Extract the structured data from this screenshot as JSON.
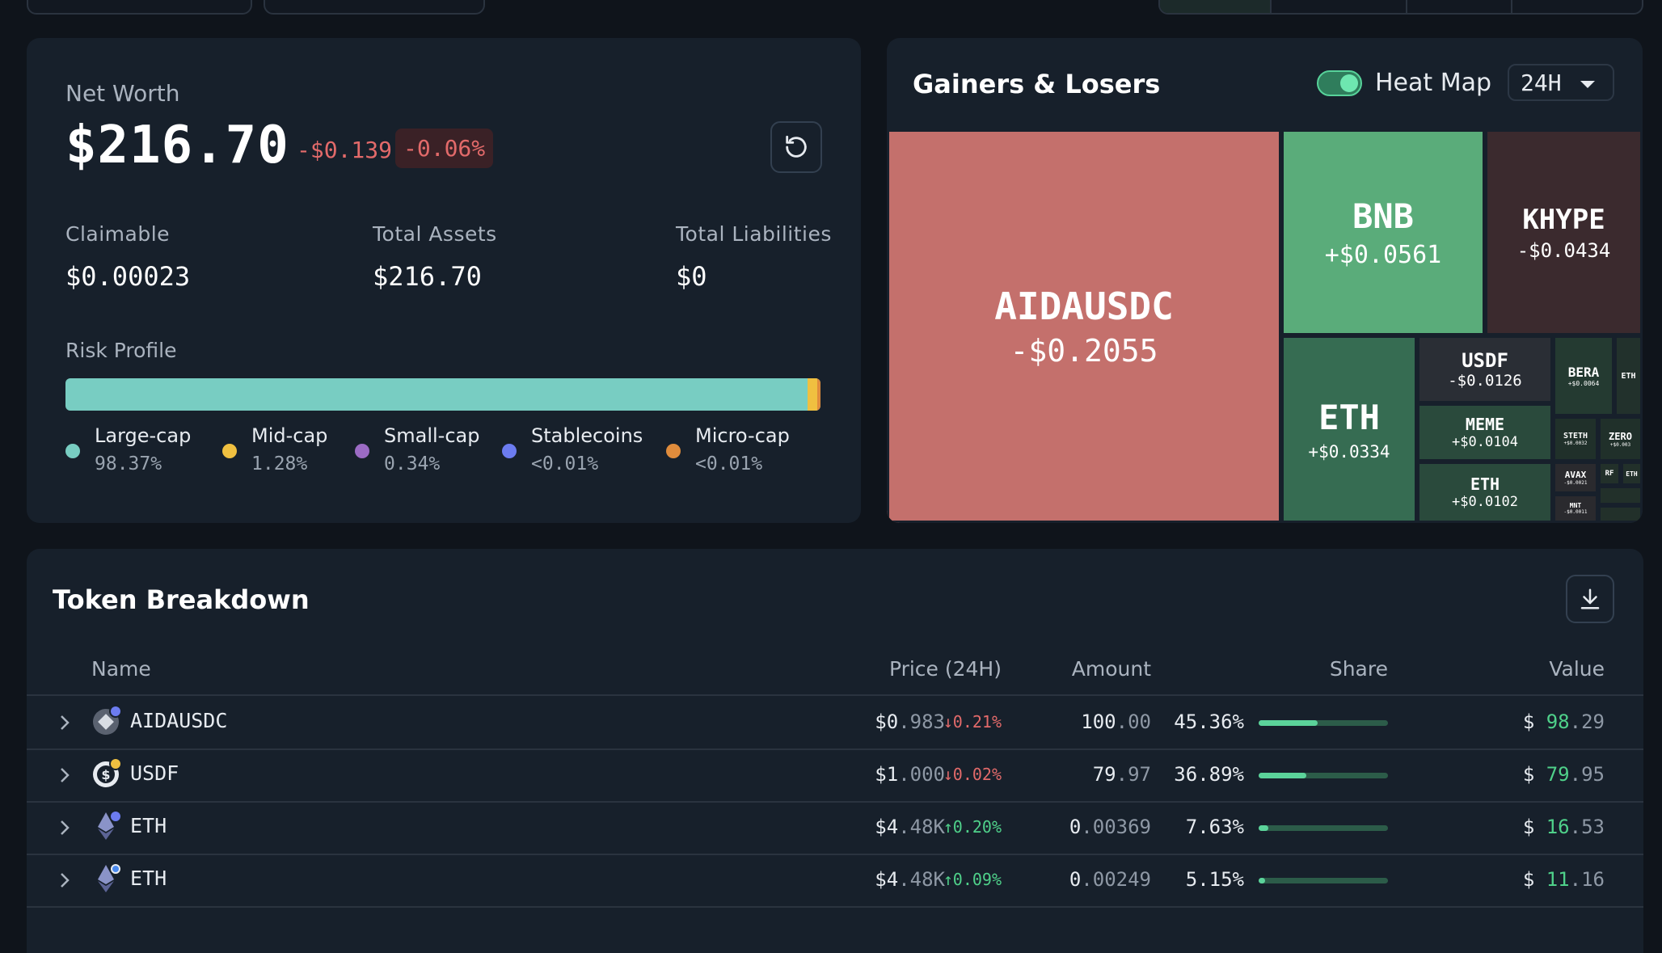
{
  "net_worth": {
    "label": "Net Worth",
    "value": "$216.70",
    "change": "-$0.139",
    "change_pct": "-0.06%",
    "stats": [
      {
        "label": "Claimable",
        "value": "$0.00023"
      },
      {
        "label": "Total Assets",
        "value": "$216.70"
      },
      {
        "label": "Total Liabilities",
        "value": "$0"
      }
    ],
    "risk_label": "Risk Profile",
    "risk_legend": [
      {
        "name": "Large-cap",
        "pct": "98.37%",
        "color": "#78cdc2"
      },
      {
        "name": "Mid-cap",
        "pct": "1.28%",
        "color": "#f0c040"
      },
      {
        "name": "Small-cap",
        "pct": "0.34%",
        "color": "#9b6bc4"
      },
      {
        "name": "Stablecoins",
        "pct": "<0.01%",
        "color": "#6c7cf0"
      },
      {
        "name": "Micro-cap",
        "pct": "<0.01%",
        "color": "#e08c3c"
      }
    ]
  },
  "gainers": {
    "title": "Gainers & Losers",
    "heatmap_label": "Heat Map",
    "heatmap_enabled": true,
    "range": "24H",
    "tiles": [
      {
        "name": "AIDAUSDC",
        "value": "-$0.2055",
        "color": "#c4706c"
      },
      {
        "name": "BNB",
        "value": "+$0.0561",
        "color": "#5aac7a"
      },
      {
        "name": "KHYPE",
        "value": "-$0.0434",
        "color": "#3b2a2e"
      },
      {
        "name": "ETH",
        "value": "+$0.0334",
        "color": "#366c52"
      },
      {
        "name": "USDF",
        "value": "-$0.0126",
        "color": "#2a2e35"
      },
      {
        "name": "MEME",
        "value": "+$0.0104",
        "color": "#2a4a3c"
      },
      {
        "name": "ETH",
        "value": "+$0.0102",
        "color": "#2a4a3c"
      },
      {
        "name": "BERA",
        "value": "+$0.0064",
        "color": "#243a31"
      },
      {
        "name": "ETH",
        "value": "",
        "color": "#22312c"
      },
      {
        "name": "STETH",
        "value": "+$0.0032",
        "color": "#20302a"
      },
      {
        "name": "ZERO",
        "value": "+$0.003",
        "color": "#20302a"
      },
      {
        "name": "AVAX",
        "value": "-$0.0021",
        "color": "#2a2a2e"
      },
      {
        "name": "RF",
        "value": "",
        "color": "#22302a"
      },
      {
        "name": "ETH",
        "value": "",
        "color": "#22302a"
      },
      {
        "name": "MNT",
        "value": "-$0.0011",
        "color": "#2a2a2e"
      },
      {
        "name": "",
        "value": "",
        "color": "#22302a"
      },
      {
        "name": "",
        "value": "",
        "color": "#22302a"
      }
    ]
  },
  "tokens": {
    "title": "Token Breakdown",
    "columns": {
      "name": "Name",
      "price": "Price (24H)",
      "amount": "Amount",
      "share": "Share",
      "value": "Value"
    },
    "rows": [
      {
        "name": "AIDAUSDC",
        "price_main": "$0",
        "price_dec": ".983",
        "change": "↓0.21%",
        "dir": "down",
        "amount_main": "100",
        "amount_dec": ".00",
        "share": "45.36%",
        "share_frac": 0.4536,
        "value_cur": "$",
        "value_main": "98",
        "value_dec": ".29",
        "icon_color": "#5a6270",
        "badge_color": "#6c7cf0"
      },
      {
        "name": "USDF",
        "price_main": "$1",
        "price_dec": ".000",
        "change": "↓0.02%",
        "dir": "down",
        "amount_main": "79",
        "amount_dec": ".97",
        "share": "36.89%",
        "share_frac": 0.3689,
        "value_cur": "$",
        "value_main": "79",
        "value_dec": ".95",
        "icon_color": "#e7ebf0",
        "badge_color": "#f0c040"
      },
      {
        "name": "ETH",
        "price_main": "$4",
        "price_dec": ".48K",
        "change": "↑0.20%",
        "dir": "up",
        "amount_main": "0",
        "amount_dec": ".00369",
        "share": "7.63%",
        "share_frac": 0.0763,
        "value_cur": "$",
        "value_main": "16",
        "value_dec": ".53",
        "icon_color": "#8a93c8",
        "badge_color": "#6c7cf0"
      },
      {
        "name": "ETH",
        "price_main": "$4",
        "price_dec": ".48K",
        "change": "↑0.09%",
        "dir": "up",
        "amount_main": "0",
        "amount_dec": ".00249",
        "share": "5.15%",
        "share_frac": 0.0515,
        "value_cur": "$",
        "value_main": "11",
        "value_dec": ".16",
        "icon_color": "#8a93c8",
        "badge_color": "#4a8af0"
      }
    ]
  }
}
